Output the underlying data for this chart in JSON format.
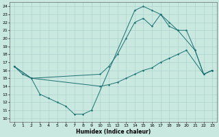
{
  "bg_color": "#c8e8e0",
  "grid_color": "#a8ccc8",
  "line_color": "#1a7070",
  "xlabel": "Humidex (Indice chaleur)",
  "xlim": [
    -0.5,
    23.5
  ],
  "ylim": [
    9.5,
    24.5
  ],
  "yticks": [
    10,
    11,
    12,
    13,
    14,
    15,
    16,
    17,
    18,
    19,
    20,
    21,
    22,
    23,
    24
  ],
  "xticks": [
    0,
    1,
    2,
    3,
    4,
    5,
    6,
    7,
    8,
    9,
    10,
    11,
    12,
    13,
    14,
    15,
    16,
    17,
    18,
    19,
    20,
    21,
    22,
    23
  ],
  "line1_x": [
    0,
    1,
    2,
    3,
    4,
    5,
    6,
    7,
    8,
    9,
    14,
    15,
    16,
    17,
    18,
    19,
    21,
    22,
    23
  ],
  "line1_y": [
    16.5,
    15.5,
    15.0,
    13.0,
    12.5,
    12.0,
    11.5,
    10.5,
    10.5,
    11.0,
    23.5,
    24.0,
    23.5,
    23.0,
    21.5,
    21.0,
    18.5,
    15.5,
    16.0
  ],
  "line2_x": [
    0,
    2,
    10,
    11,
    12,
    13,
    14,
    15,
    16,
    17,
    18,
    19,
    20,
    21,
    22,
    23
  ],
  "line2_y": [
    16.5,
    15.0,
    15.5,
    16.5,
    18.0,
    20.0,
    22.0,
    22.5,
    21.5,
    23.0,
    22.0,
    21.0,
    21.0,
    18.5,
    15.5,
    16.0
  ],
  "line3_x": [
    0,
    2,
    10,
    11,
    12,
    13,
    14,
    15,
    16,
    17,
    18,
    19,
    20,
    22,
    23
  ],
  "line3_y": [
    16.5,
    15.0,
    14.0,
    14.2,
    14.5,
    15.0,
    15.5,
    16.0,
    16.3,
    17.0,
    17.5,
    18.0,
    18.5,
    15.5,
    16.0
  ]
}
